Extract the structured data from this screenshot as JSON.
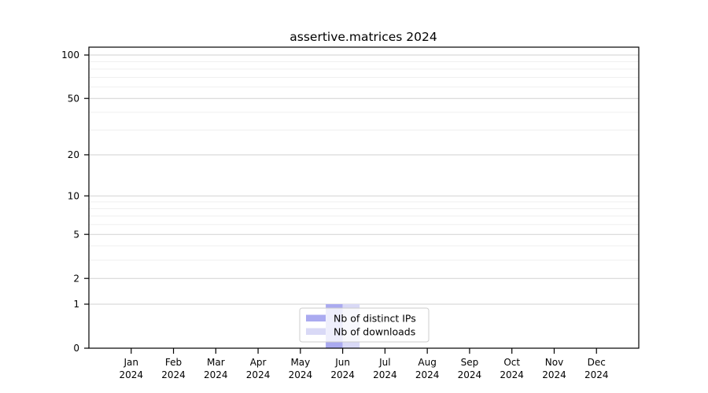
{
  "figure": {
    "background": "#ffffff"
  },
  "chart_data": {
    "type": "bar",
    "title": "assertive.matrices 2024",
    "xlabel": "",
    "ylabel": "",
    "categories": [
      "Jan 2024",
      "Feb 2024",
      "Mar 2024",
      "Apr 2024",
      "May 2024",
      "Jun 2024",
      "Jul 2024",
      "Aug 2024",
      "Sep 2024",
      "Oct 2024",
      "Nov 2024",
      "Dec 2024"
    ],
    "series": [
      {
        "name": "Nb of distinct IPs",
        "color": "#aaaaf0",
        "values": [
          0,
          0,
          0,
          0,
          0,
          1,
          0,
          0,
          0,
          0,
          0,
          0
        ]
      },
      {
        "name": "Nb of downloads",
        "color": "#d9d9f6",
        "values": [
          0,
          0,
          0,
          0,
          0,
          1,
          0,
          0,
          0,
          0,
          0,
          0
        ]
      }
    ],
    "y_axis": {
      "scale": "log1p",
      "ylim": [
        0,
        100
      ],
      "major_ticks": [
        0,
        1,
        2,
        5,
        10,
        20,
        50,
        100
      ],
      "minor_ticks": [
        3,
        4,
        6,
        7,
        8,
        9,
        30,
        40,
        60,
        70,
        80,
        90
      ]
    },
    "grid": {
      "major_color": "#d2d2d2",
      "minor_color": "#efefef"
    },
    "legend": {
      "position": "lower-center-inside",
      "background": "rgba(255,255,255,0.8)",
      "border_color": "#cccccc"
    },
    "colors": {
      "spine": "#000000",
      "tick": "#000000"
    }
  }
}
